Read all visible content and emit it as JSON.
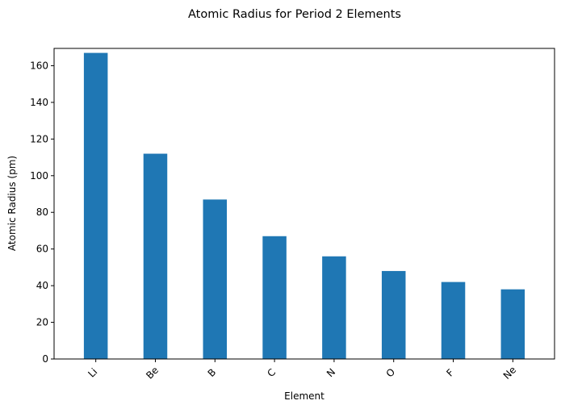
{
  "chart_data": {
    "type": "bar",
    "title": "Atomic Radius for Period 2 Elements",
    "xlabel": "Element",
    "ylabel": "Atomic Radius (pm)",
    "categories": [
      "Li",
      "Be",
      "B",
      "C",
      "N",
      "O",
      "F",
      "Ne"
    ],
    "values": [
      167,
      112,
      87,
      67,
      56,
      48,
      42,
      38
    ],
    "ylim": [
      0,
      169.45
    ],
    "yticks": [
      0,
      20,
      40,
      60,
      80,
      100,
      120,
      140,
      160
    ],
    "bar_color": "#1f77b4",
    "grid": false,
    "legend": "none",
    "xtick_rotation_deg": 45
  }
}
